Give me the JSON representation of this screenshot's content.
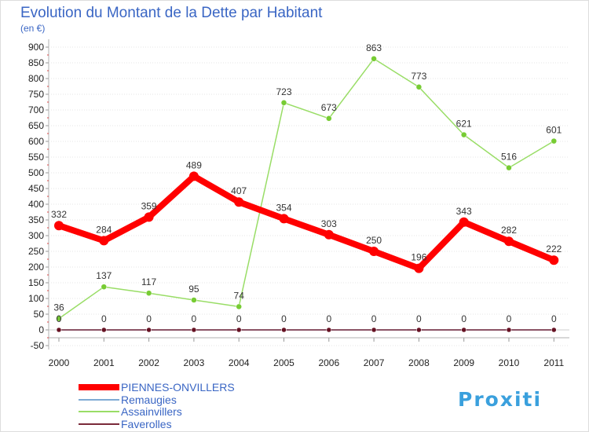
{
  "chart_data": {
    "type": "line",
    "title": "Evolution du Montant de la Dette par Habitant",
    "subtitle": "(en €)",
    "xlabel": "",
    "ylabel": "",
    "categories": [
      "2000",
      "2001",
      "2002",
      "2003",
      "2004",
      "2005",
      "2006",
      "2007",
      "2008",
      "2009",
      "2010",
      "2011"
    ],
    "ylim": [
      -50,
      900
    ],
    "yticks": [
      -50,
      0,
      50,
      100,
      150,
      200,
      250,
      300,
      350,
      400,
      450,
      500,
      550,
      600,
      650,
      700,
      750,
      800,
      850,
      900
    ],
    "grid": true,
    "legend_position": "bottom-left",
    "series": [
      {
        "name": "PIENNES-ONVILLERS",
        "color": "#ff0000",
        "point_color": "#ff0000",
        "values": [
          332,
          284,
          359,
          489,
          407,
          354,
          303,
          250,
          196,
          343,
          282,
          222
        ],
        "show_labels": true
      },
      {
        "name": "Remaugies",
        "color": "#7eaad4",
        "point_color": "#7eaad4",
        "values": [
          0,
          0,
          0,
          0,
          0,
          0,
          0,
          0,
          0,
          0,
          0,
          0
        ],
        "show_labels": false
      },
      {
        "name": "Assainvillers",
        "color": "#99dd66",
        "point_color": "#77cc33",
        "values": [
          36,
          137,
          117,
          95,
          74,
          723,
          673,
          863,
          773,
          621,
          516,
          601
        ],
        "show_labels": true
      },
      {
        "name": "Faverolles",
        "color": "#7a2a3a",
        "point_color": "#661122",
        "values": [
          0,
          0,
          0,
          0,
          0,
          0,
          0,
          0,
          0,
          0,
          0,
          0
        ],
        "show_labels": true
      }
    ]
  },
  "logo": {
    "text": "Proxiti"
  }
}
